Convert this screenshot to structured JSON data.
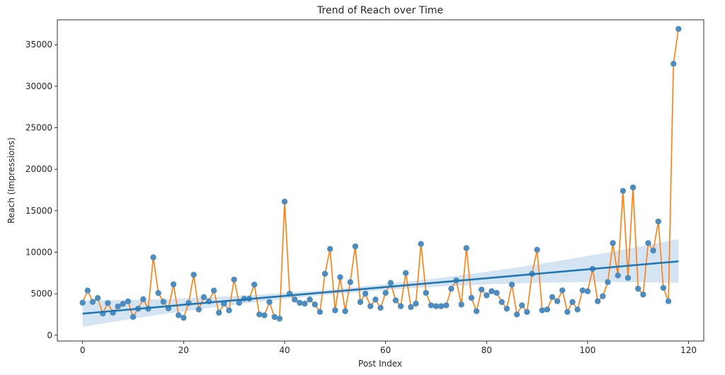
{
  "chart_data": {
    "type": "scatter",
    "title": "Trend of Reach over Time",
    "xlabel": "Post Index",
    "ylabel": "Reach (Impressions)",
    "xlim": [
      -5,
      123
    ],
    "ylim": [
      -700,
      38000
    ],
    "x_ticks": [
      0,
      20,
      40,
      60,
      80,
      100,
      120
    ],
    "y_ticks": [
      0,
      5000,
      10000,
      15000,
      20000,
      25000,
      30000,
      35000
    ],
    "grid": false,
    "series": [
      {
        "name": "Reach (points)",
        "kind": "scatter",
        "color": "#4c8cbf",
        "values": [
          3920,
          5390,
          4020,
          4480,
          2610,
          3880,
          2710,
          3470,
          3780,
          4080,
          2200,
          3200,
          4340,
          3200,
          9380,
          5080,
          4030,
          3230,
          6130,
          2420,
          2100,
          3900,
          7290,
          3100,
          4600,
          4080,
          5380,
          2720,
          3800,
          3000,
          6700,
          3900,
          4400,
          4400,
          6100,
          2500,
          2400,
          4000,
          2200,
          2000,
          16100,
          5000,
          4300,
          3900,
          3800,
          4300,
          3700,
          2800,
          7400,
          10400,
          3000,
          7000,
          2900,
          6400,
          10700,
          4000,
          5000,
          3500,
          4300,
          3300,
          5100,
          6300,
          4200,
          3500,
          7500,
          3400,
          3800,
          11000,
          5100,
          3600,
          3500,
          3500,
          3600,
          5600,
          6600,
          3700,
          10500,
          4500,
          2900,
          5500,
          4800,
          5300,
          5100,
          4000,
          3200,
          6100,
          2500,
          3600,
          2800,
          7400,
          10300,
          3000,
          3100,
          4600,
          4100,
          5400,
          2800,
          4000,
          3100,
          5400,
          5300,
          8000,
          4100,
          4700,
          6400,
          11100,
          7200,
          17400,
          6900,
          17800,
          5600,
          4900,
          11100,
          10200,
          13700,
          5700,
          4100,
          32700,
          36900
        ]
      },
      {
        "name": "Reach (line)",
        "kind": "line",
        "color": "#ff7f0e"
      },
      {
        "name": "Linear fit",
        "kind": "regression",
        "color": "#1f77b4",
        "start": 2600,
        "end": 8900,
        "ci_start": [
          1000,
          4200
        ],
        "ci_end": [
          6300,
          11600
        ],
        "ci_mid": [
          5400,
          6100
        ],
        "ci_color": "#c6dbef"
      }
    ]
  }
}
